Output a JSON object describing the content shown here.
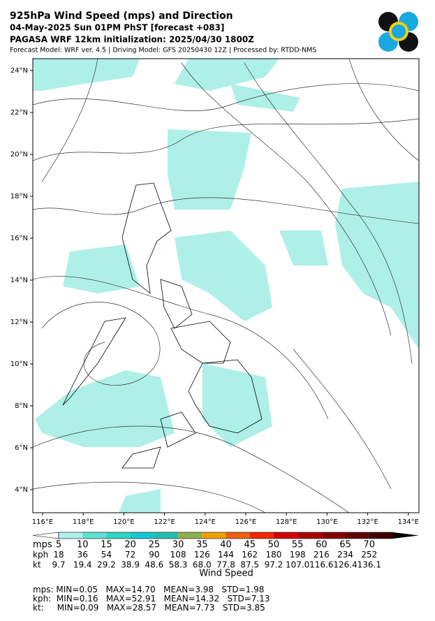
{
  "header": {
    "title": "925hPa Wind Speed (mps) and Direction",
    "valid_time": "04-May-2025 Sun 01PM PhST [forecast +083]",
    "initialization": "PAGASA WRF 12km initialization: 2025/04/30 1800Z",
    "model_info": "Forecast Model: WRF ver. 4.5 | Driving Model: GFS 20250430 12Z | Processed by: RTDD-NMS"
  },
  "map": {
    "lat_labels": [
      "24°N",
      "22°N",
      "20°N",
      "18°N",
      "16°N",
      "14°N",
      "12°N",
      "10°N",
      "8°N",
      "6°N",
      "4°N"
    ],
    "lon_labels": [
      "116°E",
      "118°E",
      "120°E",
      "122°E",
      "124°E",
      "126°E",
      "128°E",
      "130°E",
      "132°E",
      "134°E"
    ]
  },
  "colorbar": {
    "label": "Wind Speed",
    "colors": [
      "#ffffff",
      "#b0f0ea",
      "#5fe0d2",
      "#30d4c8",
      "#18c8d0",
      "#20c0b0",
      "#90b050",
      "#f0a000",
      "#f06010",
      "#f02800",
      "#d40000",
      "#a80000",
      "#800000",
      "#600000",
      "#400000",
      "#000000"
    ],
    "rows": [
      {
        "unit": "mps",
        "values": [
          "5",
          "10",
          "15",
          "20",
          "25",
          "30",
          "35",
          "40",
          "45",
          "50",
          "55",
          "60",
          "65",
          "70"
        ]
      },
      {
        "unit": "kph",
        "values": [
          "18",
          "36",
          "54",
          "72",
          "90",
          "108",
          "126",
          "144",
          "162",
          "180",
          "198",
          "216",
          "234",
          "252"
        ]
      },
      {
        "unit": "kt",
        "values": [
          "9.7",
          "19.4",
          "29.2",
          "38.9",
          "48.6",
          "58.3",
          "68.0",
          "77.8",
          "87.5",
          "97.2",
          "107.0",
          "116.6",
          "126.4",
          "136.1"
        ]
      }
    ]
  },
  "stats": [
    "mps: MIN=0.05   MAX=14.70   MEAN=3.98   STD=1.98",
    "kph:  MIN=0.16   MAX=52.91   MEAN=14.32   STD=7.13",
    "kt:     MIN=0.09   MAX=28.57   MEAN=7.73   STD=3.85"
  ]
}
